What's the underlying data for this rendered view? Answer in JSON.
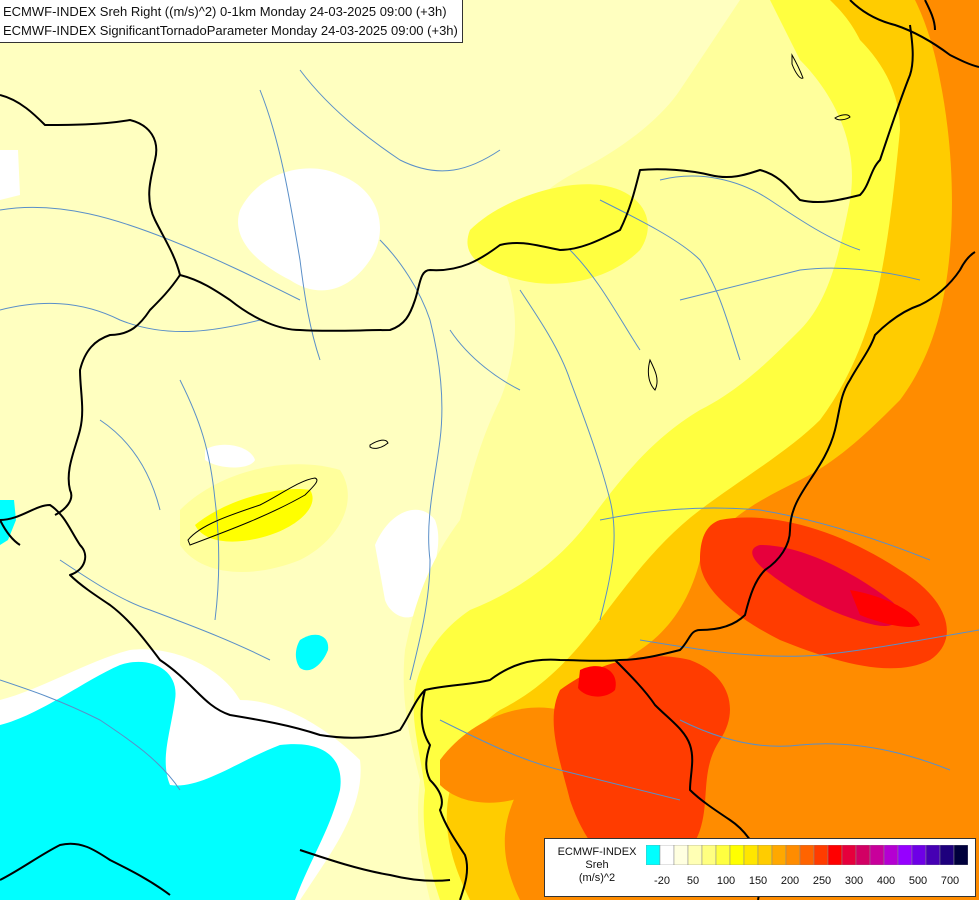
{
  "header": {
    "line1": "ECMWF-INDEX Sreh Right ((m/s)^2) 0-1km Monday 24-03-2025 09:00 (+3h)",
    "line2": "ECMWF-INDEX SignificantTornadoParameter Monday 24-03-2025 09:00 (+3h)"
  },
  "legend": {
    "model": "ECMWF-INDEX",
    "parameter": "Sreh",
    "unit": "(m/s)^2",
    "colors": [
      "#00ffff",
      "#ffffff",
      "#ffffe0",
      "#ffffb4",
      "#ffff80",
      "#ffff40",
      "#ffff00",
      "#ffe600",
      "#ffcc00",
      "#ffa800",
      "#ff8c00",
      "#ff6400",
      "#ff3c00",
      "#ff0000",
      "#e6003c",
      "#d20064",
      "#c8009b",
      "#b400d2",
      "#9600ff",
      "#6e00e6",
      "#4600b4",
      "#1e007d",
      "#00003c"
    ],
    "labels": [
      "-20",
      "50",
      "100",
      "150",
      "200",
      "250",
      "300",
      "400",
      "500",
      "700"
    ]
  }
}
